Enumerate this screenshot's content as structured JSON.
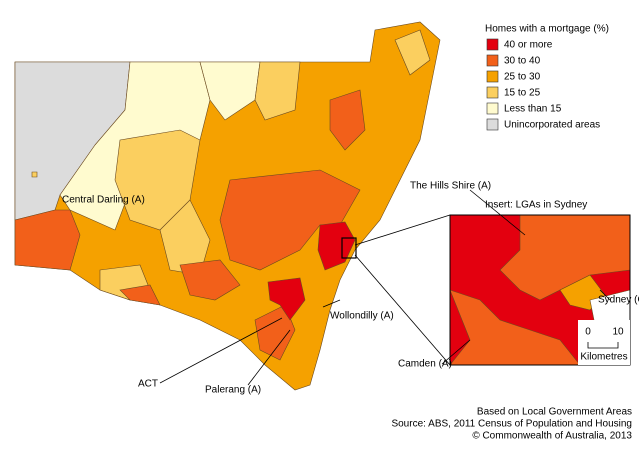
{
  "legend": {
    "title": "Homes with a mortgage (%)",
    "items": [
      {
        "label": "40 or more",
        "color": "#e3000f"
      },
      {
        "label": "30 to 40",
        "color": "#f2601a"
      },
      {
        "label": "25 to 30",
        "color": "#f5a100"
      },
      {
        "label": "15 to 25",
        "color": "#fbcf5f"
      },
      {
        "label": "Less than 15",
        "color": "#fffbcf"
      },
      {
        "label": "Unincorporated areas",
        "color": "#dcdcdc"
      }
    ]
  },
  "labels": {
    "central_darling": "Central Darling (A)",
    "hills_shire": "The Hills Shire (A)",
    "wollondilly": "Wollondilly (A)",
    "act": "ACT",
    "palerang": "Palerang (A)",
    "camden": "Camden (A)",
    "sydney": "Sydney (C)"
  },
  "insert": {
    "title": "Insert: LGAs in Sydney",
    "scale_ticks": [
      "0",
      "10"
    ],
    "scale_unit": "Kilometres"
  },
  "source": [
    "Based on Local Government Areas",
    "Source: ABS, 2011 Census of Population and Housing",
    "© Commonwealth of Australia, 2013"
  ]
}
